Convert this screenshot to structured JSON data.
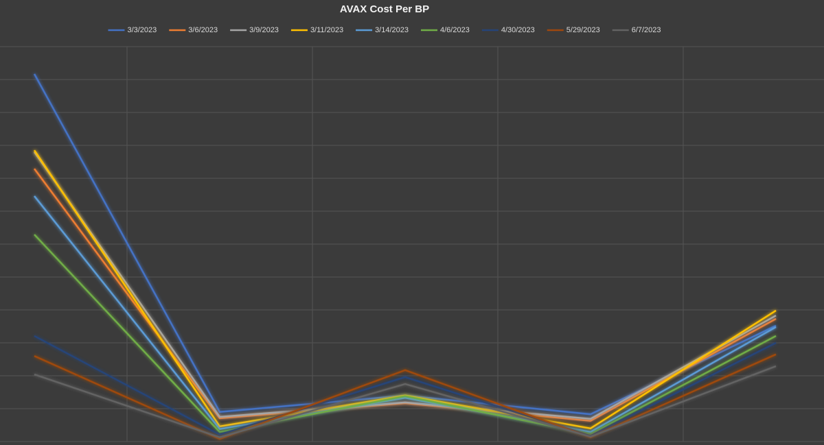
{
  "chart_data": {
    "type": "line",
    "title": "AVAX Cost Per BP",
    "categories": [
      null,
      null,
      null,
      null,
      null
    ],
    "ylim": [
      0,
      12
    ],
    "yticks": [
      0,
      1,
      2,
      3,
      4,
      5,
      6,
      7,
      8,
      9,
      10,
      11,
      12
    ],
    "grid": true,
    "legend": "top",
    "series": [
      {
        "name": "3/3/2023",
        "color": "#4472c4",
        "values": [
          11.17,
          0.9,
          1.4,
          0.83,
          3.52
        ]
      },
      {
        "name": "3/6/2023",
        "color": "#ed7d31",
        "values": [
          8.29,
          0.71,
          1.17,
          0.63,
          3.73
        ]
      },
      {
        "name": "3/9/2023",
        "color": "#a5a5a5",
        "values": [
          8.8,
          0.75,
          1.19,
          0.69,
          3.83
        ]
      },
      {
        "name": "3/11/2023",
        "color": "#ffc000",
        "values": [
          8.85,
          0.46,
          1.4,
          0.4,
          3.98
        ]
      },
      {
        "name": "3/14/2023",
        "color": "#5b9bd5",
        "values": [
          7.46,
          0.38,
          1.33,
          0.29,
          3.48
        ]
      },
      {
        "name": "4/6/2023",
        "color": "#70ad47",
        "values": [
          6.29,
          0.29,
          1.38,
          0.23,
          3.21
        ]
      },
      {
        "name": "4/30/2023",
        "color": "#264478",
        "values": [
          3.21,
          0.21,
          1.96,
          0.17,
          3.0
        ]
      },
      {
        "name": "5/29/2023",
        "color": "#9e480e",
        "values": [
          2.6,
          0.08,
          2.17,
          0.13,
          2.65
        ]
      },
      {
        "name": "6/7/2023",
        "color": "#636363",
        "values": [
          2.04,
          0.13,
          1.75,
          0.15,
          2.29
        ]
      }
    ]
  }
}
